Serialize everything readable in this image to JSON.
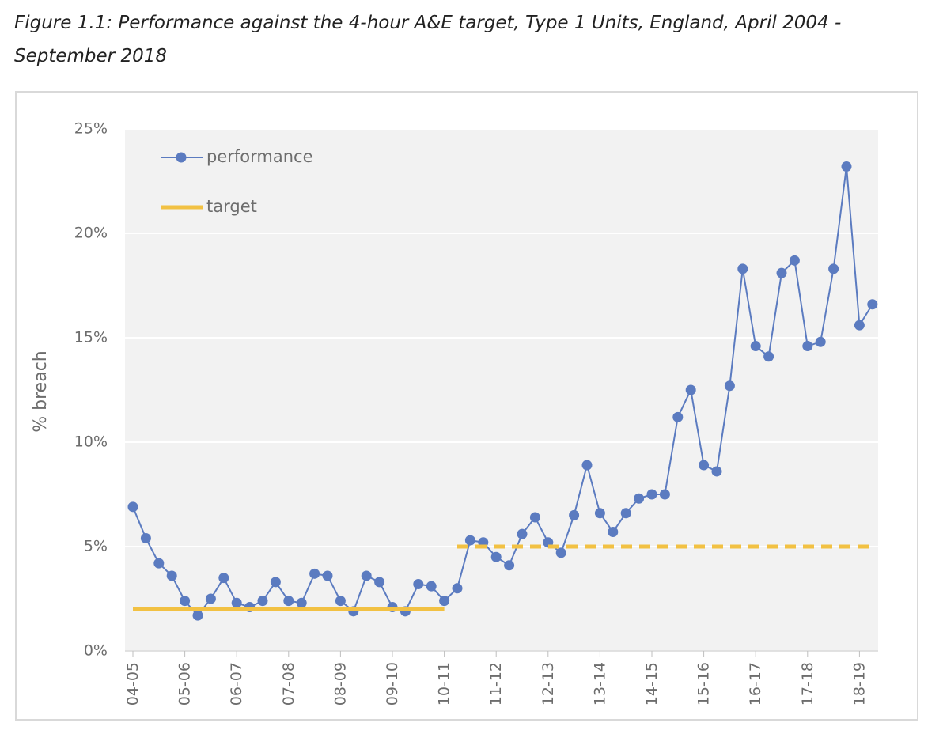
{
  "chart_data": {
    "type": "line",
    "title": "Figure 1.1: Performance against the 4-hour A&E target, Type 1 Units, England, April 2004 - September 2018",
    "ylabel": "% breach",
    "categories": [
      "04-05",
      null,
      null,
      null,
      "05-06",
      null,
      null,
      null,
      "06-07",
      null,
      null,
      null,
      "07-08",
      null,
      null,
      null,
      "08-09",
      null,
      null,
      null,
      "09-10",
      null,
      null,
      null,
      "10-11",
      null,
      null,
      null,
      "11-12",
      null,
      null,
      null,
      "12-13",
      null,
      null,
      null,
      "13-14",
      null,
      null,
      null,
      "14-15",
      null,
      null,
      null,
      "15-16",
      null,
      null,
      null,
      "16-17",
      null,
      null,
      null,
      "17-18",
      null,
      null,
      null,
      "18-19",
      null
    ],
    "series": [
      {
        "name": "performance",
        "color": "#5b7bc0",
        "marker": true,
        "values": [
          6.9,
          5.4,
          4.2,
          3.6,
          2.4,
          1.7,
          2.5,
          3.5,
          2.3,
          2.1,
          2.4,
          3.3,
          2.4,
          2.3,
          3.7,
          3.6,
          2.4,
          1.9,
          3.6,
          3.3,
          2.1,
          1.9,
          3.2,
          3.1,
          2.4,
          3.0,
          5.3,
          5.2,
          4.5,
          4.1,
          5.6,
          6.4,
          5.2,
          4.7,
          6.5,
          8.9,
          6.6,
          5.7,
          6.6,
          7.3,
          7.5,
          7.5,
          11.2,
          12.5,
          8.9,
          8.6,
          12.7,
          18.3,
          14.6,
          14.1,
          18.1,
          18.7,
          14.6,
          14.8,
          18.3,
          23.2,
          15.6,
          16.6
        ]
      },
      {
        "name": "target",
        "color": "#f2c143",
        "marker": false,
        "linestyles": [
          "solid",
          "dashed"
        ],
        "values": [
          2,
          2,
          2,
          2,
          2,
          2,
          2,
          2,
          2,
          2,
          2,
          2,
          2,
          2,
          2,
          2,
          2,
          2,
          2,
          2,
          2,
          2,
          2,
          2,
          2,
          5,
          5,
          5,
          5,
          5,
          5,
          5,
          5,
          5,
          5,
          5,
          5,
          5,
          5,
          5,
          5,
          5,
          5,
          5,
          5,
          5,
          5,
          5,
          5,
          5,
          5,
          5,
          5,
          5,
          5,
          5,
          5,
          5
        ]
      }
    ],
    "ylim": [
      0,
      25
    ],
    "yticks": [
      {
        "value": 0,
        "label": "0%"
      },
      {
        "value": 5,
        "label": "5%"
      },
      {
        "value": 10,
        "label": "10%"
      },
      {
        "value": 15,
        "label": "15%"
      },
      {
        "value": 20,
        "label": "20%"
      },
      {
        "value": 25,
        "label": "25%"
      }
    ],
    "grid": true,
    "legend": "upper left"
  }
}
